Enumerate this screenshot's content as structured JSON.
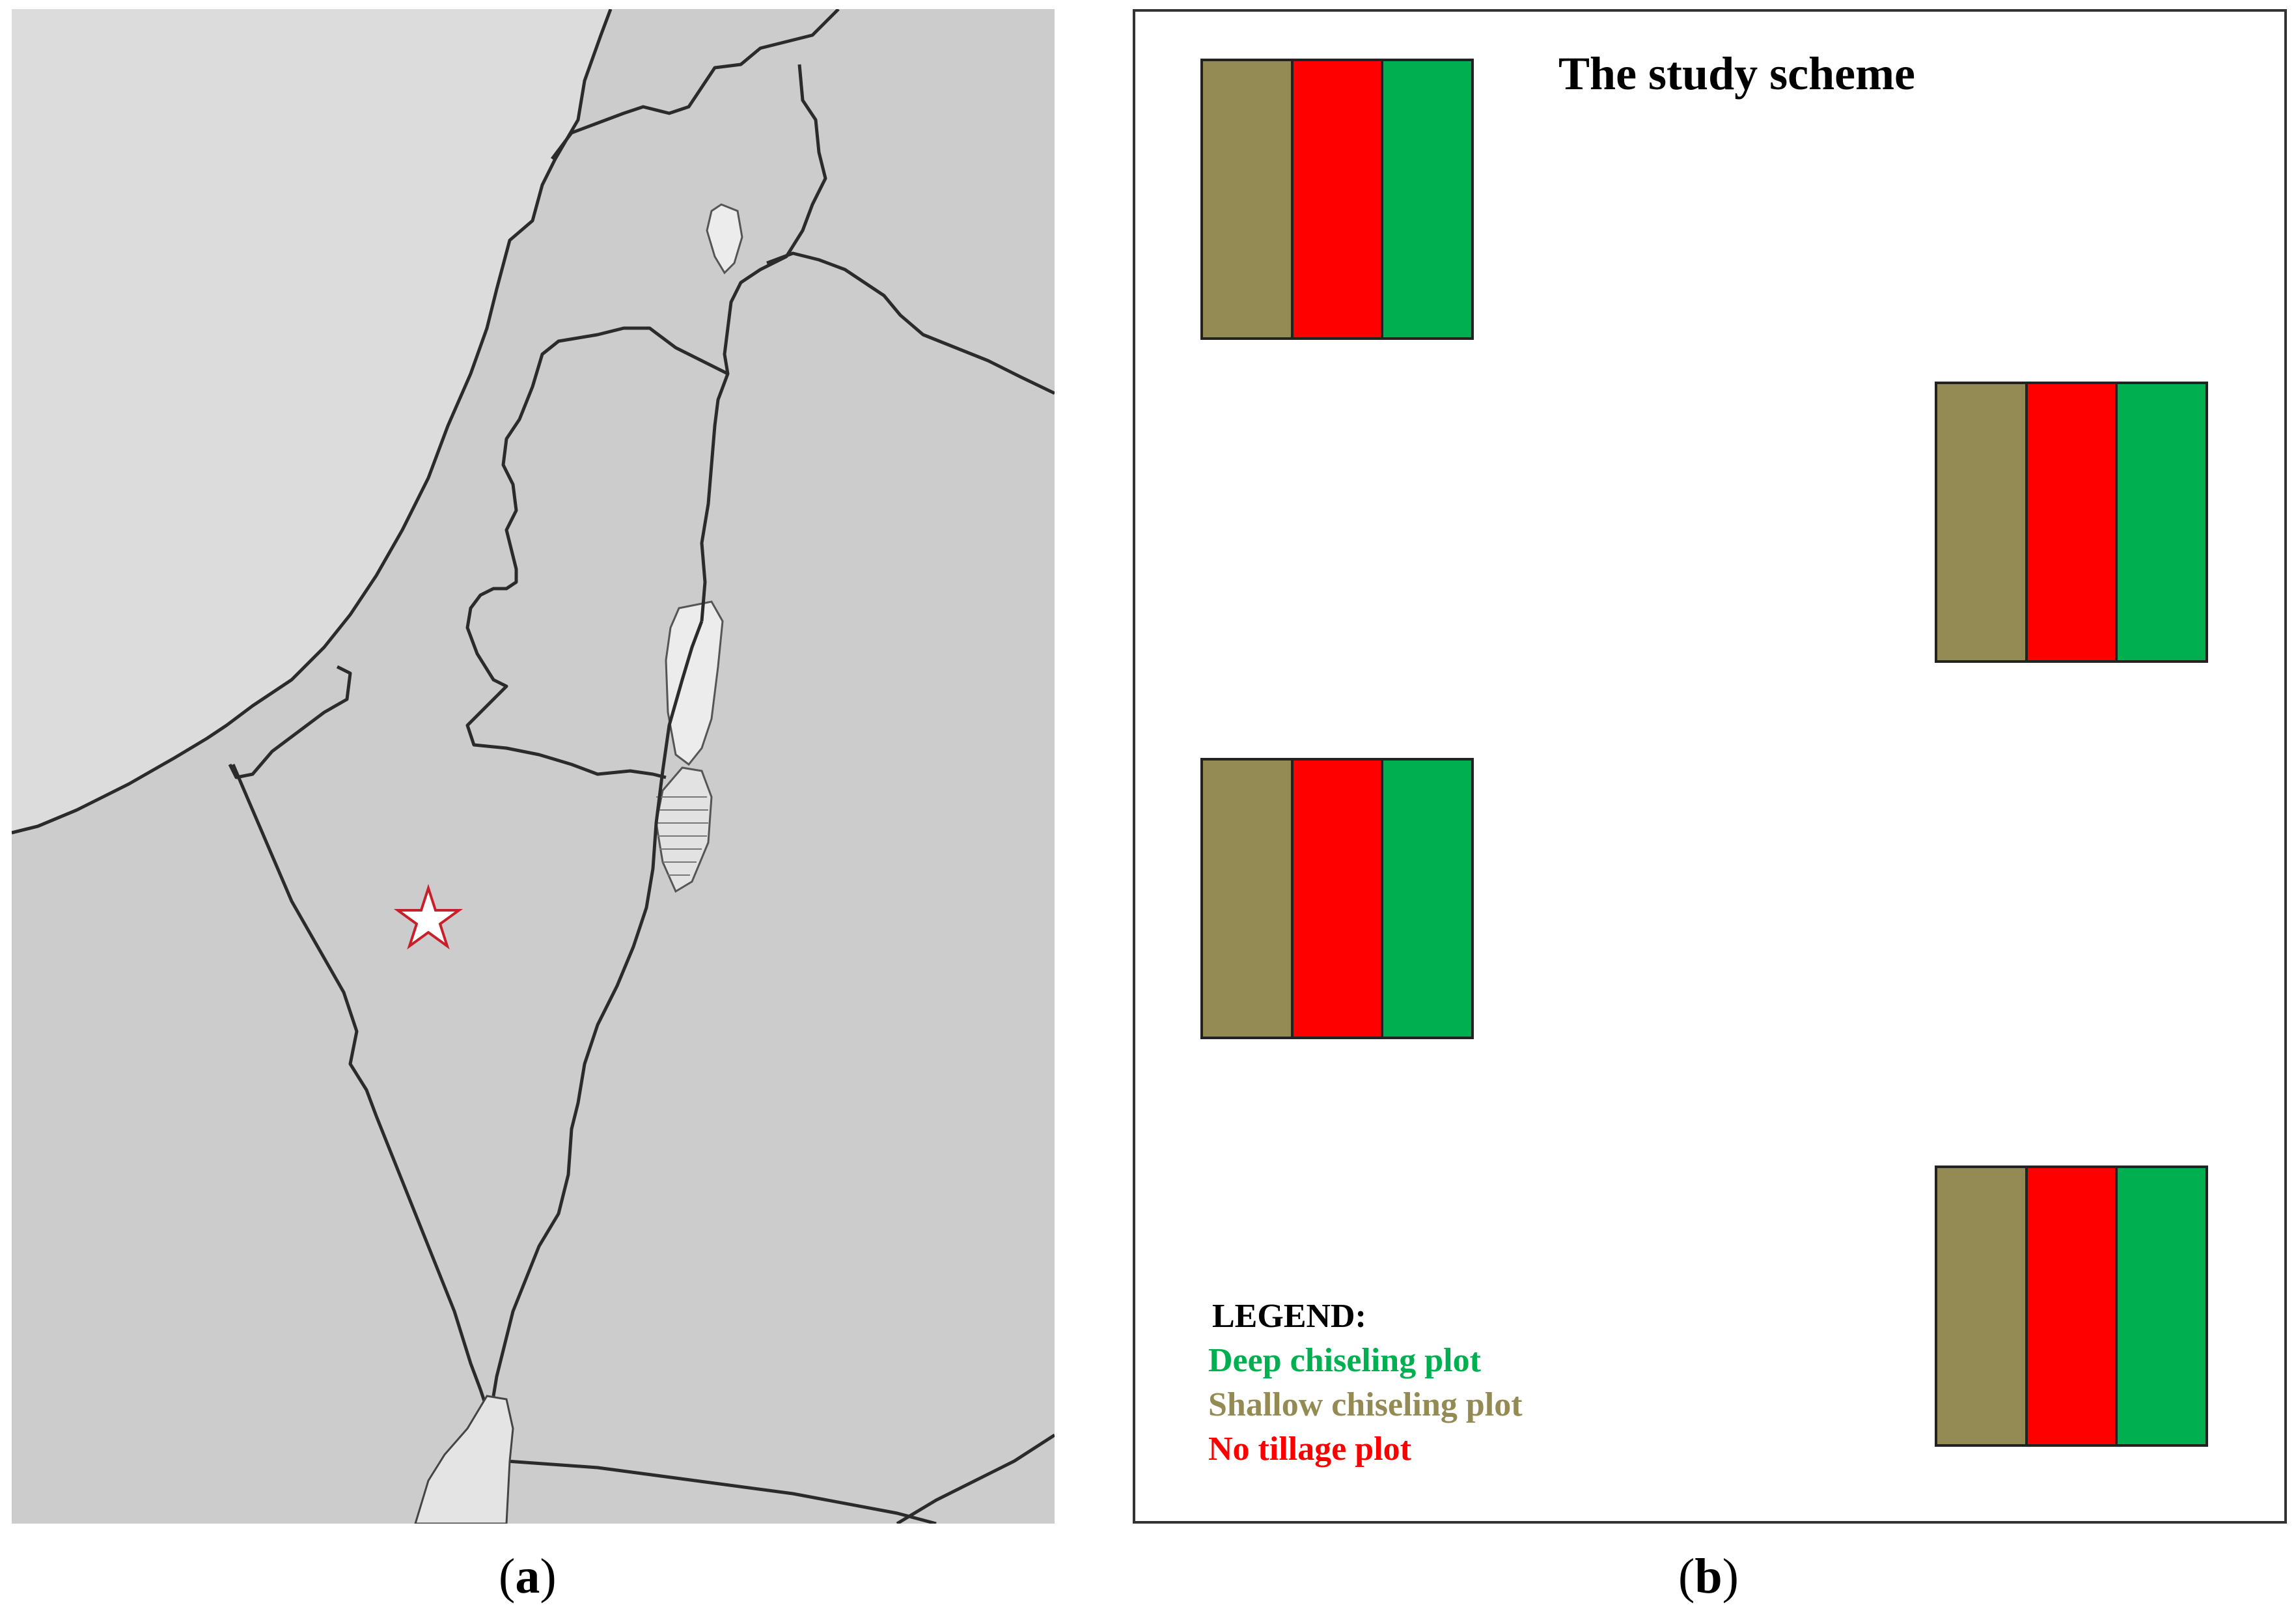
{
  "map_panel": {
    "caption_letter": "a",
    "colors": {
      "sea": "#dcdcdc",
      "land": "#cccccc",
      "lake": "#ececec",
      "border": "#2b2b2b",
      "marker_stroke": "#c8202a",
      "marker_fill": "#ffffff"
    },
    "marker_icon": "star-icon"
  },
  "scheme_panel": {
    "caption_letter": "b",
    "title": "The study scheme",
    "plot_strip_order": [
      "shallow",
      "no_tillage",
      "deep"
    ],
    "plot_count": 4,
    "legend": {
      "heading": "LEGEND:",
      "items": [
        {
          "key": "deep",
          "label": "Deep chiseling plot",
          "color": "#00b050"
        },
        {
          "key": "shallow",
          "label": "Shallow chiseling plot",
          "color": "#948a54"
        },
        {
          "key": "no_tillage",
          "label": "No tillage plot",
          "color": "#ff0000"
        }
      ]
    }
  }
}
